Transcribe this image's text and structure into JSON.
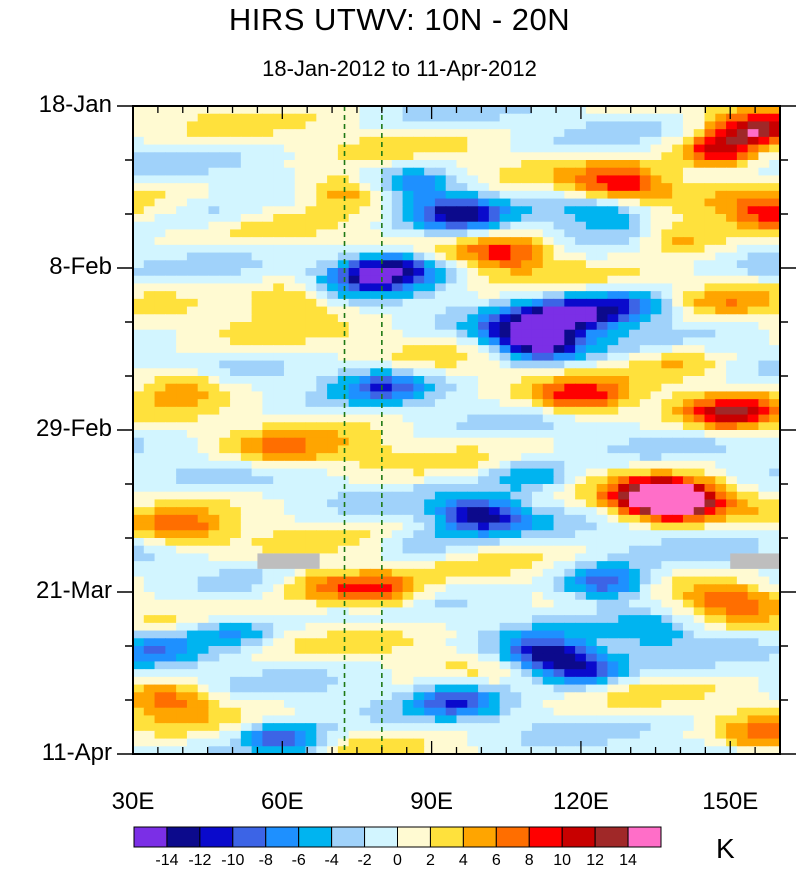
{
  "chart_data": {
    "type": "heatmap",
    "title": "HIRS UTWV: 10N - 20N",
    "subtitle": "18-Jan-2012 to 11-Apr-2012",
    "xlabel": "",
    "ylabel": "",
    "x_range": [
      30,
      160
    ],
    "y_range_days": [
      0,
      84
    ],
    "x_ticks": [
      {
        "value": 30,
        "label": "30E"
      },
      {
        "value": 60,
        "label": "60E"
      },
      {
        "value": 90,
        "label": "90E"
      },
      {
        "value": 120,
        "label": "120E"
      },
      {
        "value": 150,
        "label": "150E"
      }
    ],
    "y_ticks": [
      {
        "value": 0,
        "label": "18-Jan"
      },
      {
        "value": 21,
        "label": "8-Feb"
      },
      {
        "value": 42,
        "label": "29-Feb"
      },
      {
        "value": 63,
        "label": "21-Mar"
      },
      {
        "value": 84,
        "label": "11-Apr"
      }
    ],
    "reference_lines_lon": [
      72.5,
      80
    ],
    "missing_data": [
      {
        "lon": [
          55,
          67.5
        ],
        "day": [
          58,
          60
        ]
      },
      {
        "lon": [
          150,
          160
        ],
        "day": [
          58,
          60
        ]
      }
    ],
    "colorbar": {
      "units": "K",
      "levels": [
        -14,
        -12,
        -10,
        -8,
        -6,
        -4,
        -2,
        0,
        2,
        4,
        6,
        8,
        10,
        12,
        14
      ],
      "labels": [
        "-14",
        "-12",
        "-10",
        "-8",
        "-6",
        "-4",
        "-2",
        "0",
        "2",
        "4",
        "6",
        "8",
        "10",
        "12",
        "14"
      ],
      "colors": [
        "#7b2fe6",
        "#0c0a8c",
        "#0a0acc",
        "#3c64e6",
        "#1e90ff",
        "#00b4f0",
        "#a0d2fa",
        "#d2f5ff",
        "#fffad2",
        "#ffe13c",
        "#ffa500",
        "#ff6e00",
        "#ff0000",
        "#c80000",
        "#a02828",
        "#ff6ec8"
      ]
    },
    "anomaly_features": [
      {
        "lon": 148,
        "day": 6,
        "value": 11
      },
      {
        "lon": 155,
        "day": 3,
        "value": 12
      },
      {
        "lon": 128,
        "day": 10,
        "value": 9
      },
      {
        "lon": 158,
        "day": 14,
        "value": 9
      },
      {
        "lon": 72,
        "day": 11,
        "value": 8
      },
      {
        "lon": 105,
        "day": 19,
        "value": 8
      },
      {
        "lon": 140,
        "day": 17,
        "value": 7
      },
      {
        "lon": 40,
        "day": 36,
        "value": 6
      },
      {
        "lon": 62,
        "day": 25,
        "value": 6
      },
      {
        "lon": 120,
        "day": 38,
        "value": 9
      },
      {
        "lon": 150,
        "day": 40,
        "value": 10
      },
      {
        "lon": 140,
        "day": 51,
        "value": 12
      },
      {
        "lon": 135,
        "day": 51,
        "value": 15
      },
      {
        "lon": 60,
        "day": 45,
        "value": 6
      },
      {
        "lon": 80,
        "day": 63,
        "value": 9
      },
      {
        "lon": 68,
        "day": 62,
        "value": 7
      },
      {
        "lon": 40,
        "day": 55,
        "value": 6
      },
      {
        "lon": 150,
        "day": 64,
        "value": 7
      },
      {
        "lon": 38,
        "day": 77,
        "value": 7
      },
      {
        "lon": 157,
        "day": 82,
        "value": 7
      },
      {
        "lon": 83,
        "day": 21,
        "value": -12
      },
      {
        "lon": 76,
        "day": 22,
        "value": -8
      },
      {
        "lon": 95,
        "day": 14,
        "value": -11
      },
      {
        "lon": 87,
        "day": 10,
        "value": -6
      },
      {
        "lon": 118,
        "day": 27,
        "value": -12
      },
      {
        "lon": 112,
        "day": 31,
        "value": -13
      },
      {
        "lon": 108,
        "day": 29,
        "value": -10
      },
      {
        "lon": 130,
        "day": 26,
        "value": -9
      },
      {
        "lon": 125,
        "day": 14,
        "value": -6
      },
      {
        "lon": 80,
        "day": 36,
        "value": -8
      },
      {
        "lon": 100,
        "day": 53,
        "value": -12
      },
      {
        "lon": 110,
        "day": 48,
        "value": -7
      },
      {
        "lon": 125,
        "day": 62,
        "value": -12
      },
      {
        "lon": 112,
        "day": 71,
        "value": -12
      },
      {
        "lon": 120,
        "day": 73,
        "value": -11
      },
      {
        "lon": 60,
        "day": 82,
        "value": -11
      },
      {
        "lon": 50,
        "day": 68,
        "value": -7
      },
      {
        "lon": 95,
        "day": 77,
        "value": -8
      },
      {
        "lon": 35,
        "day": 70,
        "value": -6
      },
      {
        "lon": 88,
        "day": 57,
        "value": -4
      },
      {
        "lon": 135,
        "day": 68,
        "value": -5
      },
      {
        "lon": 45,
        "day": 14,
        "value": -3
      },
      {
        "lon": 75,
        "day": 45,
        "value": 2
      },
      {
        "lon": 140,
        "day": 33,
        "value": 4
      },
      {
        "lon": 150,
        "day": 25,
        "value": 3
      }
    ]
  }
}
